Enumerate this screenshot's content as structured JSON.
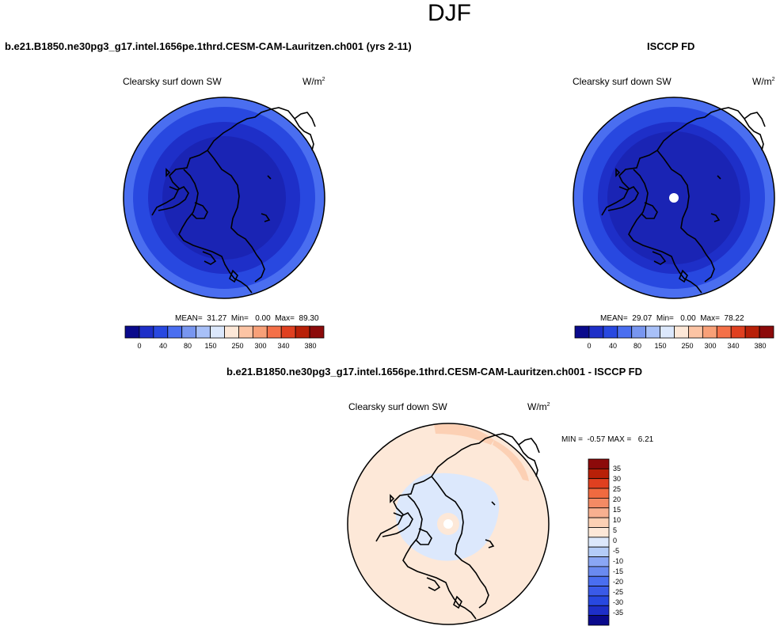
{
  "figure": {
    "season": "DJF",
    "colors": {
      "abs_levels": [
        "#0a0a8c",
        "#1e2fc8",
        "#2848e0",
        "#4a6ef0",
        "#7896f0",
        "#a8c0f8",
        "#dce8fc",
        "#fde8d8",
        "#fcc4a4",
        "#f8a078",
        "#f47048",
        "#e04020",
        "#b82008",
        "#8c0a0a"
      ],
      "diff_levels": [
        "#0a0a8c",
        "#1e2fc8",
        "#2848e0",
        "#3a5ae8",
        "#4a6ef0",
        "#6a8af0",
        "#8aa6f4",
        "#b4ccf8",
        "#dce8fc",
        "#fde8d8",
        "#fcd0b4",
        "#f8b090",
        "#f48a64",
        "#f06a40",
        "#e04020",
        "#b82008",
        "#8c0a0a"
      ],
      "ocean_diff": "#fde8d8",
      "arctic_diff": "#dce8fc"
    }
  },
  "panel_model": {
    "title": "b.e21.B1850.ne30pg3_g17.intel.1656pe.1thrd.CESM-CAM-Lauritzen.ch001 (yrs 2-11)",
    "variable": "Clearsky surf down SW",
    "units": "W/m",
    "units_exp": "2",
    "mean_label": "MEAN=",
    "mean": "31.27",
    "min_label": "Min=",
    "min": "0.00",
    "max_label": "Max=",
    "max": "89.30",
    "colorbar_ticks": [
      "0",
      "40",
      "80",
      "150",
      "250",
      "300",
      "340",
      "380"
    ]
  },
  "panel_obs": {
    "title": "ISCCP FD",
    "variable": "Clearsky surf down SW",
    "units": "W/m",
    "units_exp": "2",
    "mean_label": "MEAN=",
    "mean": "29.07",
    "min_label": "Min=",
    "min": "0.00",
    "max_label": "Max=",
    "max": "78.22",
    "colorbar_ticks": [
      "0",
      "40",
      "80",
      "150",
      "250",
      "300",
      "340",
      "380"
    ]
  },
  "panel_diff": {
    "title": "b.e21.B1850.ne30pg3_g17.intel.1656pe.1thrd.CESM-CAM-Lauritzen.ch001 - ISCCP FD",
    "variable": "Clearsky surf down SW",
    "units": "W/m",
    "units_exp": "2",
    "min_label": "MIN =",
    "min": "-0.57",
    "max_label": "MAX =",
    "max": "6.21",
    "colorbar_ticks": [
      "35",
      "30",
      "25",
      "20",
      "15",
      "10",
      "5",
      "0",
      "-5",
      "-10",
      "-15",
      "-20",
      "-25",
      "-30",
      "-35"
    ]
  }
}
